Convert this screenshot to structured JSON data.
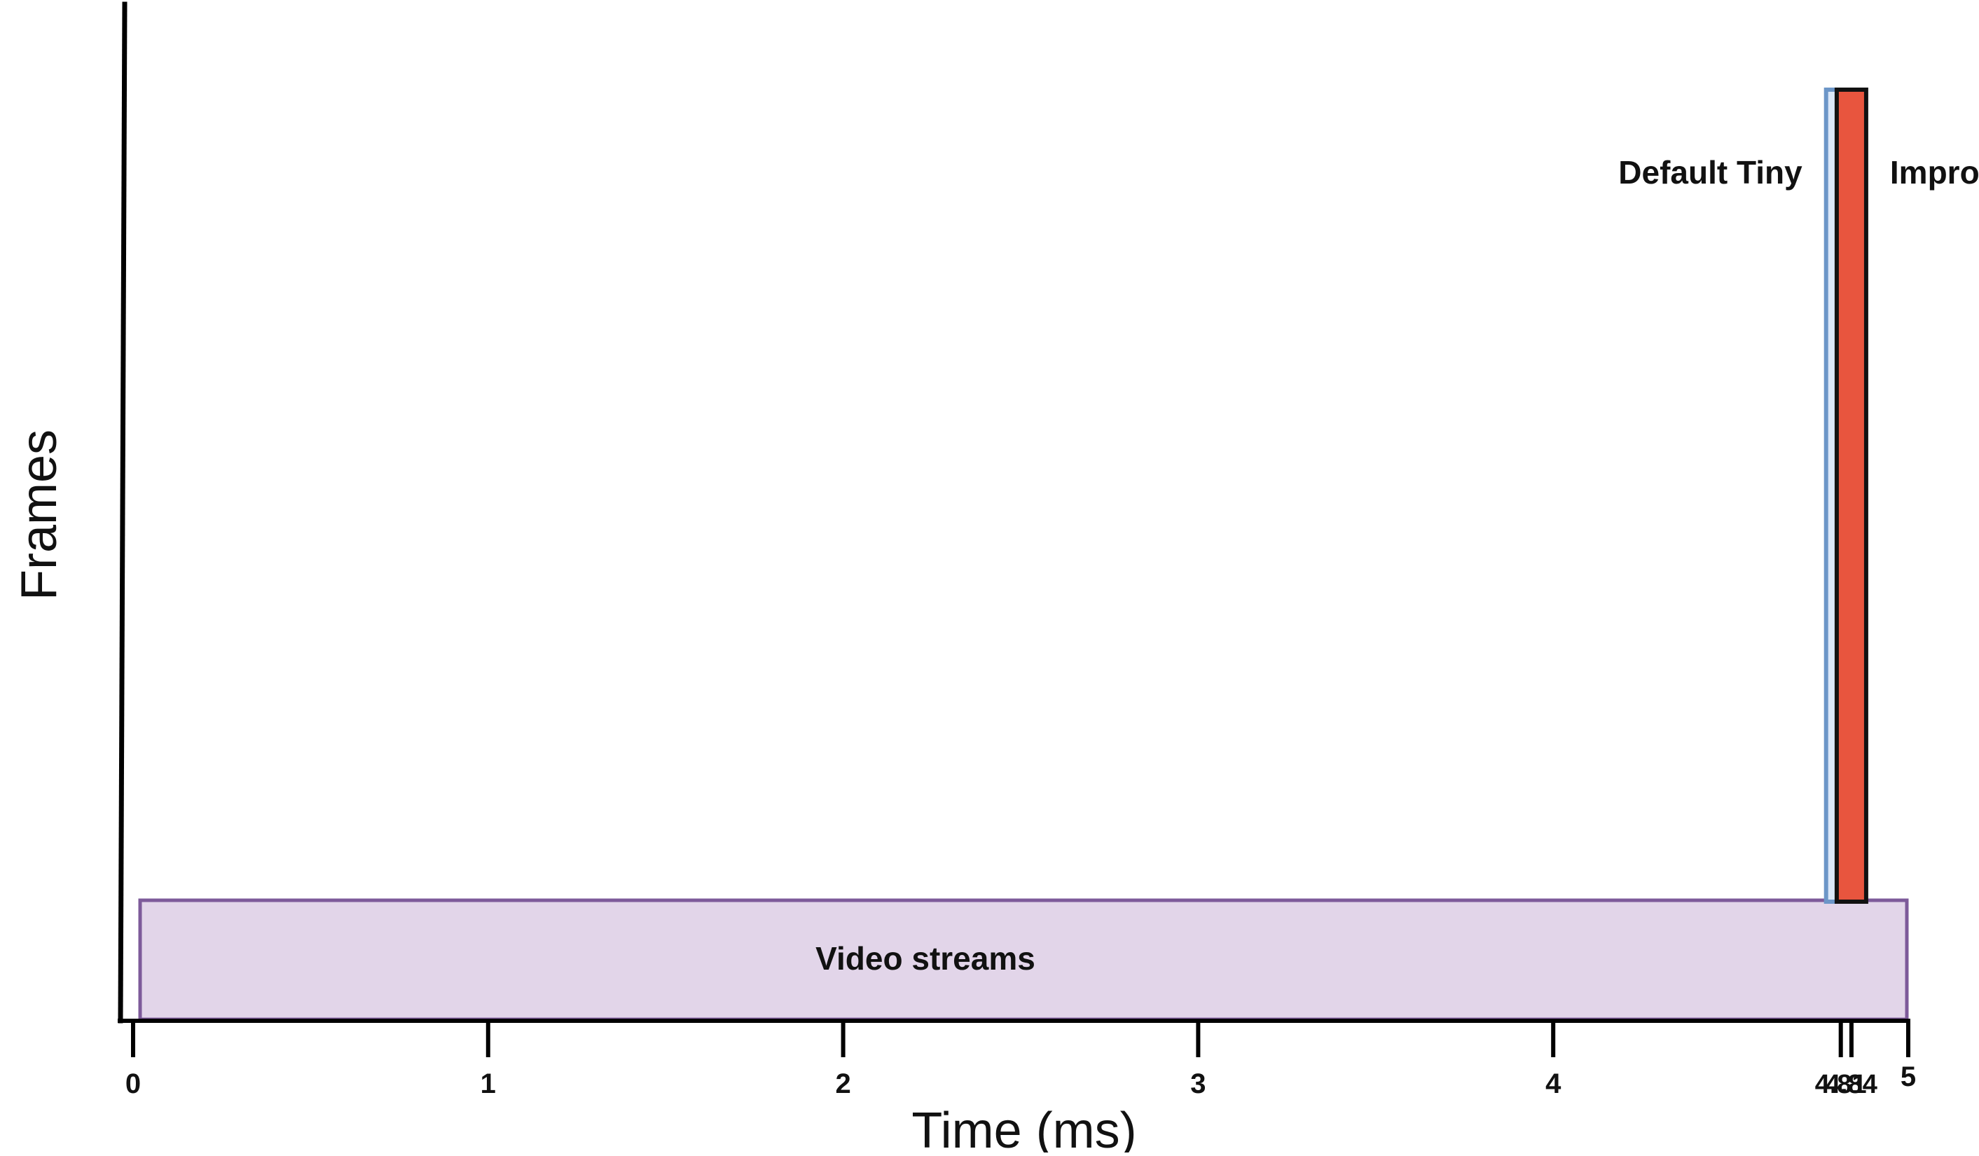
{
  "chart_data": {
    "type": "bar",
    "xlabel": "Time (ms)",
    "ylabel": "Frames",
    "xlim": [
      0,
      5
    ],
    "ylim": [
      0,
      1
    ],
    "grid": false,
    "legend": "none",
    "x_ticks": [
      {
        "value": 0,
        "label": "0"
      },
      {
        "value": 1,
        "label": "1"
      },
      {
        "value": 2,
        "label": "2"
      },
      {
        "value": 3,
        "label": "3"
      },
      {
        "value": 4,
        "label": "4"
      },
      {
        "value": 4.81,
        "label": "4.81"
      },
      {
        "value": 4.84,
        "label": "4.84"
      },
      {
        "value": 5,
        "label": "5"
      }
    ],
    "band": {
      "label": "Video streams",
      "x_start": 0,
      "x_end": 5,
      "fill": "#e2d5e9",
      "stroke": "#7d5a9a"
    },
    "series": [
      {
        "name": "Default Tiny",
        "x": 4.81,
        "fill": "#dae7f8",
        "stroke": "#6c96c8"
      },
      {
        "name": "Improved Tiny",
        "x": 4.84,
        "fill": "#e8553e",
        "stroke": "#111111"
      }
    ]
  }
}
